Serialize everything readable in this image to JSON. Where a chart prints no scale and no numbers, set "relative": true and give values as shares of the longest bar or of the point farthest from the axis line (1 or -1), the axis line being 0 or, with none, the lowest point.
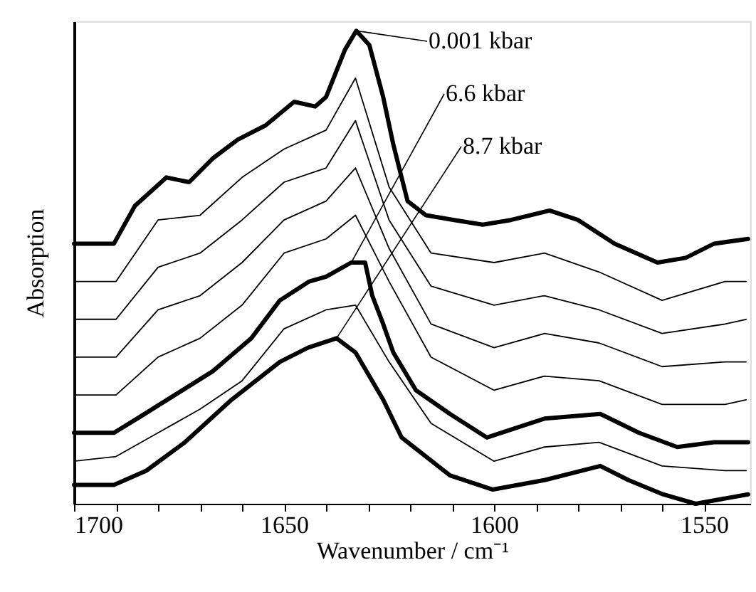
{
  "chart_data": {
    "type": "line",
    "xlabel": "Wavenumber / cm⁻¹",
    "ylabel": "Absorption",
    "relative": true,
    "xlim": [
      1700,
      1539
    ],
    "xticks": [
      1700,
      {
        "value": 1690,
        "label": null
      },
      {
        "value": 1680,
        "label": null
      },
      {
        "value": 1670,
        "label": null
      },
      {
        "value": 1660,
        "label": null
      },
      1650,
      {
        "value": 1640,
        "label": null
      },
      {
        "value": 1630,
        "label": null
      },
      {
        "value": 1620,
        "label": null
      },
      {
        "value": 1610,
        "label": null
      },
      1600,
      {
        "value": 1590,
        "label": null
      },
      {
        "value": 1580,
        "label": null
      },
      {
        "value": 1570,
        "label": null
      },
      {
        "value": 1560,
        "label": null
      },
      1550
    ],
    "grid": false,
    "line_style": "solid",
    "marker": "none",
    "series": [
      {
        "name": "0.001 kbar",
        "color": "#000000",
        "x": [
          1700,
          1690.5,
          1685.5,
          1678,
          1672.6,
          1667,
          1661,
          1654.4,
          1647.6,
          1642.6,
          1640,
          1635.5,
          1632.8,
          1629.7,
          1626.4,
          1624,
          1620.6,
          1616.2,
          1609.5,
          1602.7,
          1596,
          1586.8,
          1580,
          1571.3,
          1561.1,
          1554.4,
          1547.6,
          1539.5
        ],
        "values": [
          0.55,
          0.55,
          0.63,
          0.69,
          0.68,
          0.73,
          0.77,
          0.8,
          0.85,
          0.84,
          0.86,
          0.96,
          1.0,
          0.97,
          0.86,
          0.76,
          0.64,
          0.61,
          0.6,
          0.59,
          0.6,
          0.62,
          0.6,
          0.55,
          0.51,
          0.52,
          0.55,
          0.56
        ]
      },
      {
        "color": "#000000",
        "x": [
          1700,
          1690,
          1680,
          1670,
          1660,
          1650,
          1640,
          1633,
          1625,
          1615,
          1600,
          1588,
          1575,
          1560,
          1545,
          1540
        ],
        "values": [
          0.47,
          0.47,
          0.6,
          0.61,
          0.69,
          0.75,
          0.79,
          0.9,
          0.67,
          0.53,
          0.51,
          0.53,
          0.49,
          0.43,
          0.47,
          0.47
        ]
      },
      {
        "color": "#000000",
        "x": [
          1700,
          1690,
          1680,
          1670,
          1660,
          1650,
          1640,
          1633,
          1625,
          1615,
          1600,
          1588,
          1575,
          1560,
          1545,
          1540
        ],
        "values": [
          0.39,
          0.39,
          0.5,
          0.53,
          0.6,
          0.68,
          0.71,
          0.81,
          0.6,
          0.46,
          0.42,
          0.44,
          0.41,
          0.36,
          0.38,
          0.39
        ]
      },
      {
        "color": "#000000",
        "x": [
          1700,
          1690,
          1680,
          1670,
          1660,
          1650,
          1640,
          1633,
          1625,
          1615,
          1600,
          1588,
          1575,
          1560,
          1545,
          1540
        ],
        "values": [
          0.31,
          0.31,
          0.41,
          0.44,
          0.51,
          0.6,
          0.64,
          0.71,
          0.54,
          0.38,
          0.33,
          0.36,
          0.34,
          0.29,
          0.3,
          0.3
        ]
      },
      {
        "color": "#000000",
        "x": [
          1700,
          1690,
          1680,
          1670,
          1660,
          1650,
          1640,
          1633,
          1625,
          1615,
          1600,
          1588,
          1575,
          1560,
          1545,
          1540
        ],
        "values": [
          0.23,
          0.23,
          0.31,
          0.35,
          0.42,
          0.53,
          0.56,
          0.61,
          0.47,
          0.31,
          0.24,
          0.27,
          0.26,
          0.21,
          0.21,
          0.22
        ]
      },
      {
        "name": "6.6 kbar",
        "color": "#000000",
        "x": [
          1700,
          1690.5,
          1685,
          1676,
          1667,
          1657.8,
          1651,
          1644,
          1640,
          1634,
          1630.7,
          1629,
          1626.4,
          1624,
          1618.6,
          1610.5,
          1601.7,
          1588,
          1574.7,
          1565.5,
          1556.4,
          1547.6,
          1539.5
        ],
        "values": [
          0.15,
          0.15,
          0.18,
          0.23,
          0.28,
          0.35,
          0.43,
          0.47,
          0.48,
          0.51,
          0.51,
          0.44,
          0.38,
          0.32,
          0.24,
          0.19,
          0.14,
          0.18,
          0.19,
          0.15,
          0.12,
          0.13,
          0.13
        ]
      },
      {
        "color": "#000000",
        "x": [
          1700,
          1690,
          1680,
          1670,
          1660,
          1650,
          1640,
          1633,
          1625,
          1615,
          1600,
          1588,
          1575,
          1560,
          1545,
          1540
        ],
        "values": [
          0.09,
          0.1,
          0.15,
          0.2,
          0.26,
          0.37,
          0.41,
          0.42,
          0.3,
          0.17,
          0.09,
          0.12,
          0.13,
          0.08,
          0.07,
          0.07
        ]
      },
      {
        "name": "8.7 kbar",
        "color": "#000000",
        "x": [
          1700,
          1690.5,
          1682.8,
          1673.6,
          1662.5,
          1651,
          1644.3,
          1637.5,
          1633,
          1626.4,
          1622,
          1610.5,
          1600.3,
          1588,
          1574.7,
          1568,
          1559.8,
          1552,
          1539.5
        ],
        "values": [
          0.04,
          0.04,
          0.07,
          0.13,
          0.22,
          0.3,
          0.33,
          0.35,
          0.32,
          0.22,
          0.14,
          0.06,
          0.03,
          0.05,
          0.08,
          0.05,
          0.02,
          0.0,
          0.02
        ]
      }
    ]
  }
}
